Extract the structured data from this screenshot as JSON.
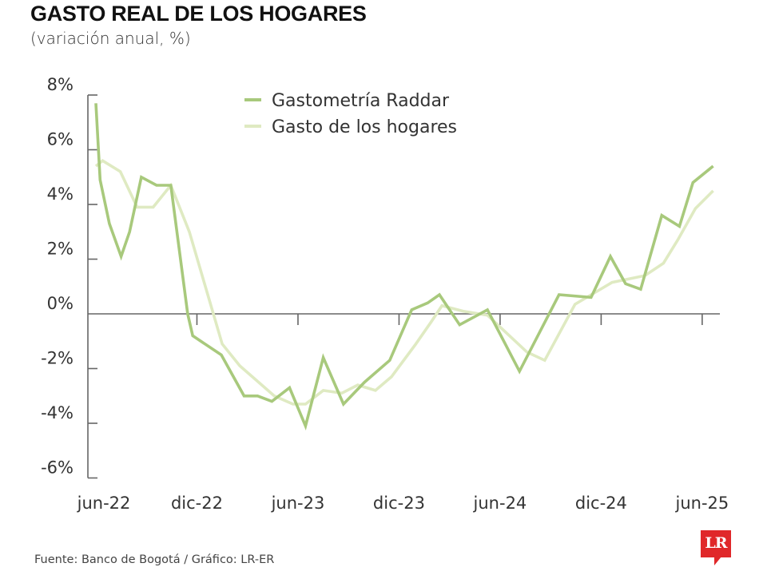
{
  "header": {
    "title": "GASTO REAL DE LOS HOGARES",
    "subtitle": "(variación anual, %)"
  },
  "footer": {
    "source": "Fuente: Banco de Bogotá / Gráfico: LR-ER",
    "logo_text": "LR",
    "logo_color": "#e0282a"
  },
  "chart_data": {
    "type": "line",
    "title": "GASTO REAL DE LOS HOGARES",
    "subtitle": "(variación anual, %)",
    "xlabel": "",
    "ylabel": "",
    "x_unit": "months since jun-22",
    "xlim": [
      0,
      37.5
    ],
    "ylim": [
      -6,
      8
    ],
    "grid": false,
    "legend_position": "top-center",
    "y_ticks": [
      {
        "value": 8,
        "label": "8%"
      },
      {
        "value": 6,
        "label": "6%"
      },
      {
        "value": 4,
        "label": "4%"
      },
      {
        "value": 2,
        "label": "2%"
      },
      {
        "value": 0,
        "label": "0%"
      },
      {
        "value": -2,
        "label": "-2%"
      },
      {
        "value": -4,
        "label": "-4%"
      },
      {
        "value": -6,
        "label": "-6%"
      }
    ],
    "x_ticks": [
      {
        "value": 0,
        "label": "jun-22"
      },
      {
        "value": 6,
        "label": "dic-22"
      },
      {
        "value": 12,
        "label": "jun-23"
      },
      {
        "value": 18,
        "label": "dic-23"
      },
      {
        "value": 24,
        "label": "jun-24"
      },
      {
        "value": 30,
        "label": "dic-24"
      },
      {
        "value": 36,
        "label": "jun-25"
      }
    ],
    "series": [
      {
        "name": "Gastometría Raddar",
        "color": "#a8c97c",
        "points": [
          [
            0.0,
            7.7
          ],
          [
            0.25,
            4.9
          ],
          [
            0.8,
            3.3
          ],
          [
            1.5,
            2.1
          ],
          [
            2.0,
            3.0
          ],
          [
            2.7,
            5.0
          ],
          [
            3.6,
            4.7
          ],
          [
            4.45,
            4.7
          ],
          [
            5.45,
            0.0
          ],
          [
            5.75,
            -0.8
          ],
          [
            7.45,
            -1.5
          ],
          [
            8.8,
            -3.0
          ],
          [
            9.6,
            -3.0
          ],
          [
            10.45,
            -3.2
          ],
          [
            11.5,
            -2.7
          ],
          [
            12.45,
            -4.1
          ],
          [
            13.5,
            -1.6
          ],
          [
            14.7,
            -3.3
          ],
          [
            15.95,
            -2.5
          ],
          [
            17.45,
            -1.7
          ],
          [
            18.75,
            0.15
          ],
          [
            19.7,
            0.4
          ],
          [
            20.4,
            0.7
          ],
          [
            21.6,
            -0.4
          ],
          [
            23.25,
            0.15
          ],
          [
            25.15,
            -2.1
          ],
          [
            27.5,
            0.7
          ],
          [
            29.4,
            0.6
          ],
          [
            30.55,
            2.1
          ],
          [
            31.45,
            1.1
          ],
          [
            32.35,
            0.9
          ],
          [
            33.6,
            3.6
          ],
          [
            34.65,
            3.2
          ],
          [
            35.45,
            4.8
          ],
          [
            36.65,
            5.4
          ]
        ]
      },
      {
        "name": "Gasto de los hogares",
        "color": "#dfeac2",
        "points": [
          [
            0.0,
            5.4
          ],
          [
            0.4,
            5.6
          ],
          [
            1.45,
            5.2
          ],
          [
            2.45,
            3.9
          ],
          [
            3.4,
            3.9
          ],
          [
            4.45,
            4.7
          ],
          [
            5.55,
            3.0
          ],
          [
            7.5,
            -1.1
          ],
          [
            8.55,
            -1.9
          ],
          [
            10.6,
            -3.0
          ],
          [
            11.7,
            -3.3
          ],
          [
            12.45,
            -3.3
          ],
          [
            13.5,
            -2.8
          ],
          [
            14.6,
            -2.9
          ],
          [
            15.55,
            -2.6
          ],
          [
            16.6,
            -2.8
          ],
          [
            17.55,
            -2.3
          ],
          [
            19.0,
            -1.1
          ],
          [
            19.9,
            -0.3
          ],
          [
            20.55,
            0.3
          ],
          [
            21.8,
            0.1
          ],
          [
            23.25,
            -0.05
          ],
          [
            25.6,
            -1.4
          ],
          [
            26.65,
            -1.7
          ],
          [
            28.45,
            0.35
          ],
          [
            30.65,
            1.15
          ],
          [
            32.6,
            1.4
          ],
          [
            33.7,
            1.85
          ],
          [
            34.55,
            2.7
          ],
          [
            35.6,
            3.85
          ],
          [
            36.65,
            4.5
          ]
        ]
      }
    ],
    "axis_color": "#666666"
  }
}
